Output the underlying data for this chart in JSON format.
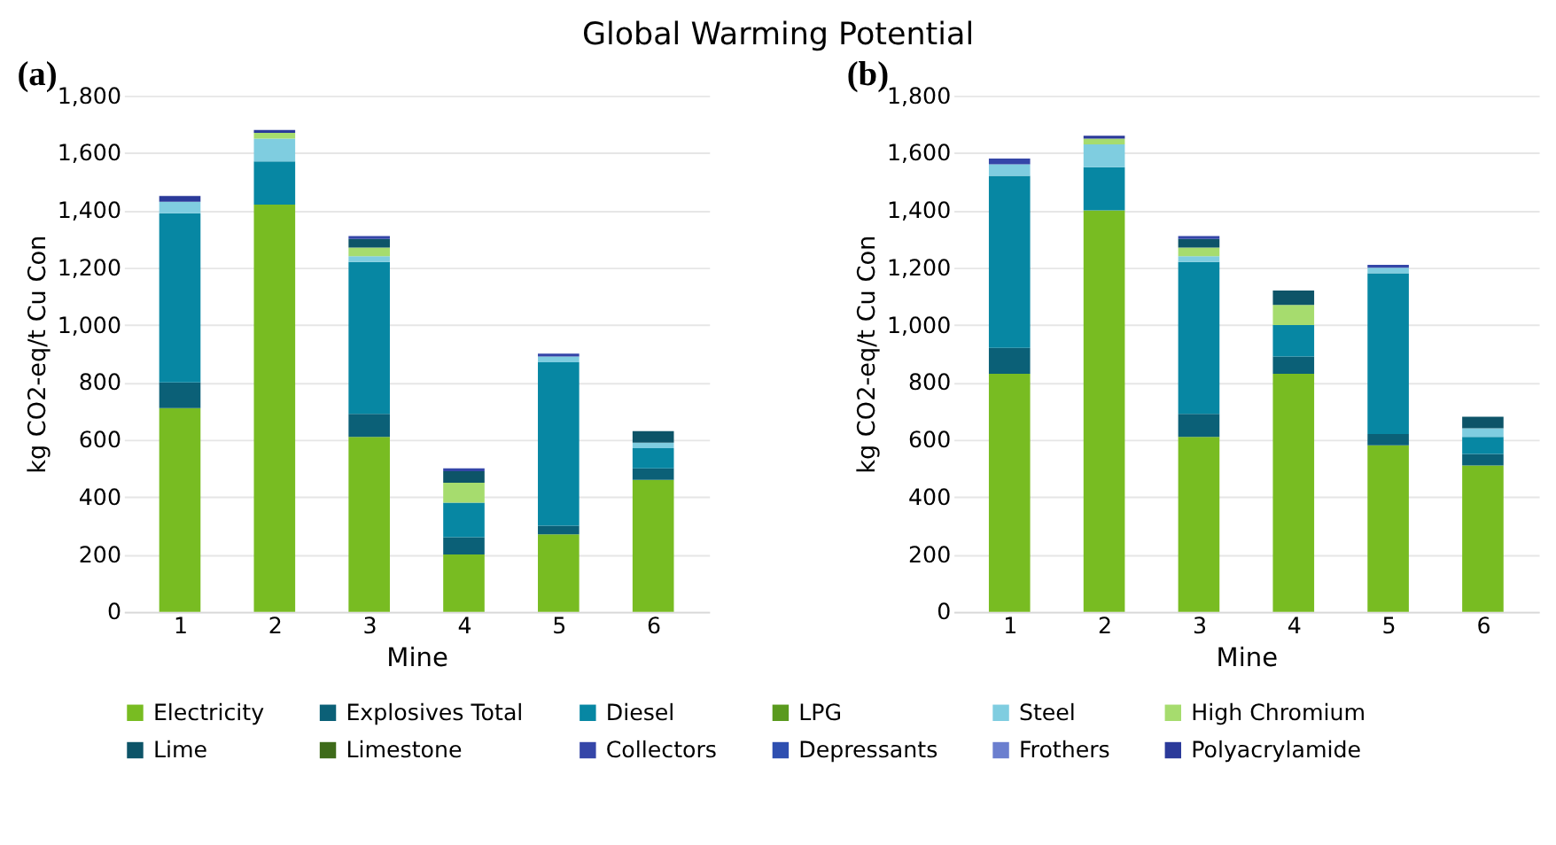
{
  "chart_data": [
    {
      "type": "bar",
      "title": "Global Warming Potential",
      "annotations": [
        "(a)"
      ],
      "xlabel": "Mine",
      "ylabel": "kg CO2-eq/t Cu Con",
      "categories": [
        "1",
        "2",
        "3",
        "4",
        "5",
        "6"
      ],
      "stacked": true,
      "ylim": [
        0,
        1800
      ],
      "yticks": [
        0,
        {
          "value": 200,
          "label": "200"
        },
        {
          "value": 400,
          "label": "400"
        },
        {
          "value": 600,
          "label": "600"
        },
        {
          "value": 800,
          "label": "800"
        },
        {
          "value": 1000,
          "label": "1,000"
        },
        {
          "value": 1200,
          "label": "1,200"
        },
        {
          "value": 1400,
          "label": "1,400"
        },
        {
          "value": 1600,
          "label": "1,600"
        },
        {
          "value": 1800,
          "label": "1,800"
        }
      ],
      "grid": "y",
      "legend": "bottom",
      "series": [
        {
          "name": "Electricity",
          "color": "#78bc22",
          "values": [
            710,
            1420,
            610,
            200,
            270,
            460
          ]
        },
        {
          "name": "Explosives Total",
          "color": "#0b6077",
          "values": [
            90,
            null,
            80,
            60,
            30,
            40
          ]
        },
        {
          "name": "Diesel",
          "color": "#0787a3",
          "values": [
            590,
            150,
            530,
            120,
            570,
            70
          ]
        },
        {
          "name": "LPG",
          "color": "#5a9a1e",
          "values": [
            null,
            null,
            null,
            null,
            null,
            null
          ]
        },
        {
          "name": "Steel",
          "color": "#7fcde0",
          "values": [
            40,
            80,
            20,
            null,
            20,
            20
          ]
        },
        {
          "name": "High Chromium",
          "color": "#a6dc6e",
          "values": [
            null,
            20,
            30,
            70,
            null,
            null
          ]
        },
        {
          "name": "Lime",
          "color": "#0d5468",
          "values": [
            null,
            null,
            30,
            40,
            null,
            40
          ]
        },
        {
          "name": "Limestone",
          "color": "#3e6b1a",
          "values": [
            null,
            null,
            null,
            null,
            null,
            null
          ]
        },
        {
          "name": "Collectors",
          "color": "#3546a8",
          "values": [
            null,
            null,
            10,
            10,
            10,
            null
          ]
        },
        {
          "name": "Depressants",
          "color": "#2e4fb0",
          "values": [
            null,
            null,
            null,
            null,
            null,
            null
          ]
        },
        {
          "name": "Frothers",
          "color": "#6b7fcf",
          "values": [
            null,
            null,
            null,
            null,
            null,
            null
          ]
        },
        {
          "name": "Polyacrylamide",
          "color": "#2b3a9a",
          "values": [
            20,
            10,
            null,
            null,
            null,
            null
          ]
        }
      ]
    },
    {
      "type": "bar",
      "annotations": [
        "(b)"
      ],
      "xlabel": "Mine",
      "ylabel": "kg CO2-eq/t Cu Con",
      "categories": [
        "1",
        "2",
        "3",
        "4",
        "5",
        "6"
      ],
      "stacked": true,
      "ylim": [
        0,
        1800
      ],
      "yticks": [
        0,
        {
          "value": 200,
          "label": "200"
        },
        {
          "value": 400,
          "label": "400"
        },
        {
          "value": 600,
          "label": "600"
        },
        {
          "value": 800,
          "label": "800"
        },
        {
          "value": 1000,
          "label": "1,000"
        },
        {
          "value": 1200,
          "label": "1,200"
        },
        {
          "value": 1400,
          "label": "1,400"
        },
        {
          "value": 1600,
          "label": "1,600"
        },
        {
          "value": 1800,
          "label": "1,800"
        }
      ],
      "grid": "y",
      "series": [
        {
          "color": "#78bc22",
          "values": [
            830,
            1400,
            610,
            830,
            580,
            510
          ]
        },
        {
          "color": "#0b6077",
          "values": [
            90,
            null,
            80,
            60,
            40,
            40
          ]
        },
        {
          "color": "#0787a3",
          "values": [
            600,
            150,
            530,
            110,
            560,
            60
          ]
        },
        {
          "color": "#7fcde0",
          "values": [
            40,
            80,
            20,
            null,
            20,
            30
          ]
        },
        {
          "color": "#a6dc6e",
          "values": [
            null,
            20,
            30,
            70,
            null,
            null
          ]
        },
        {
          "color": "#0d5468",
          "values": [
            null,
            null,
            30,
            50,
            null,
            40
          ]
        },
        {
          "color": "#3546a8",
          "values": [
            20,
            null,
            10,
            null,
            10,
            null
          ]
        },
        {
          "color": "#2b3a9a",
          "values": [
            null,
            10,
            null,
            null,
            null,
            null
          ]
        }
      ]
    }
  ]
}
